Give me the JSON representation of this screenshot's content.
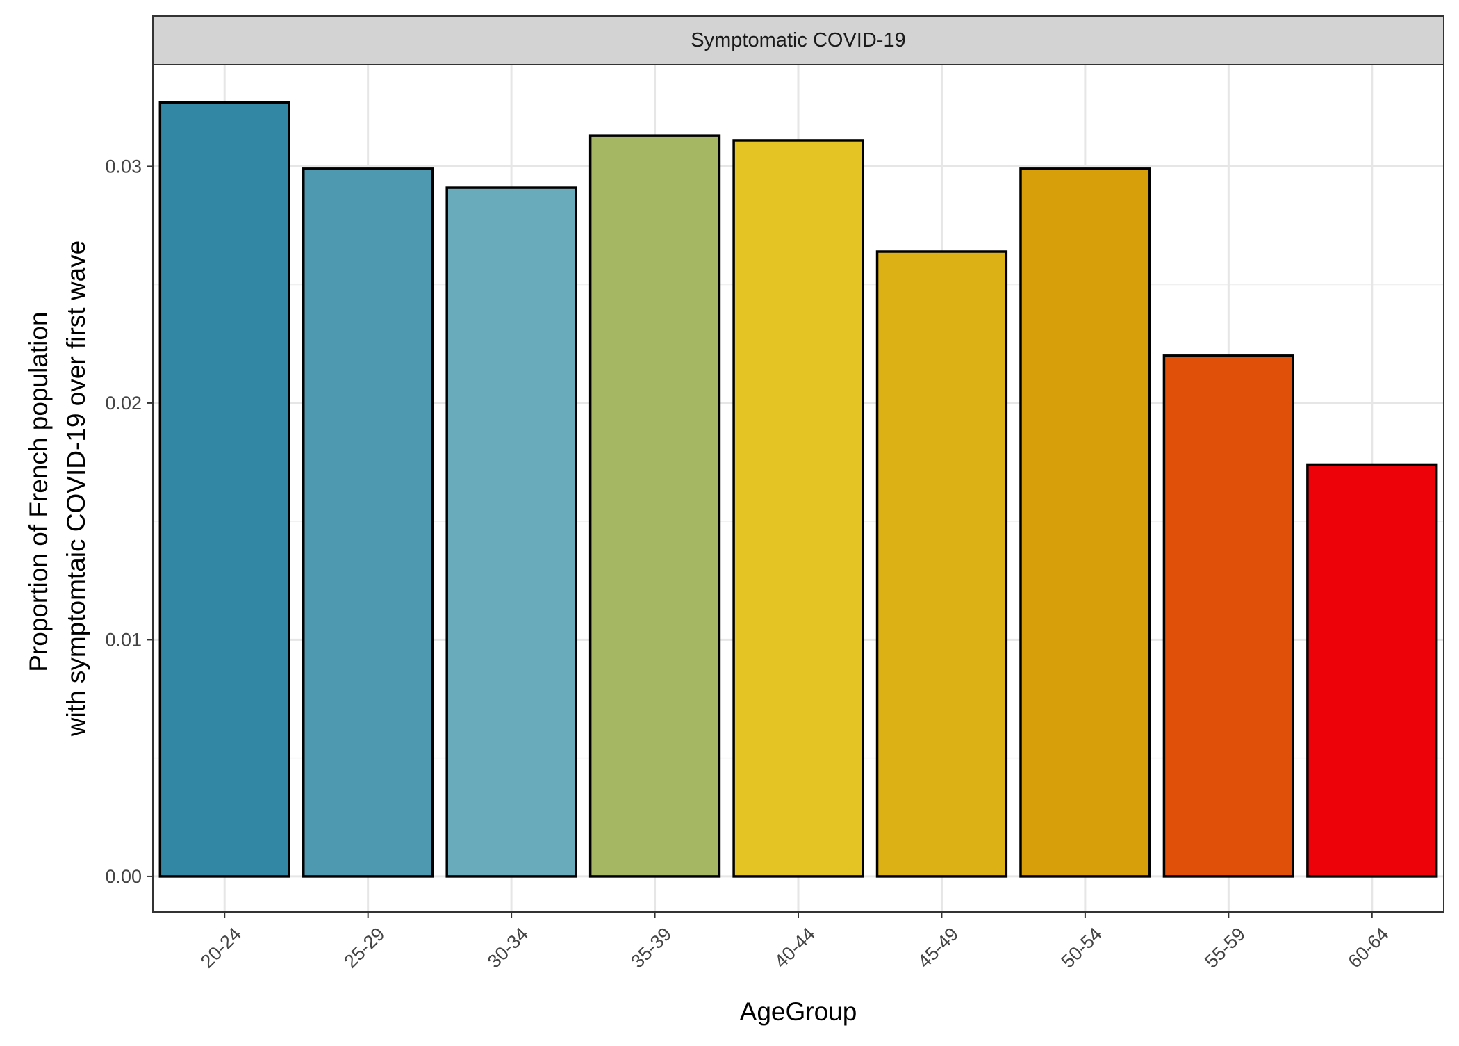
{
  "chart_data": {
    "type": "bar",
    "facet_title": "Symptomatic COVID-19",
    "categories": [
      "20-24",
      "25-29",
      "30-34",
      "35-39",
      "40-44",
      "45-49",
      "50-54",
      "55-59",
      "60-64"
    ],
    "values": [
      0.0327,
      0.0299,
      0.0291,
      0.0313,
      0.0311,
      0.0264,
      0.0299,
      0.022,
      0.0174
    ],
    "colors": [
      "#3288A4",
      "#4E98B0",
      "#69AABB",
      "#A5B763",
      "#E3C424",
      "#DCB115",
      "#D79F09",
      "#E05008",
      "#EC0208"
    ],
    "xlabel": "AgeGroup",
    "ylabel_lines": [
      "Proportion of French population",
      "with symptomtaic COVID-19 over first wave"
    ],
    "ylim": [
      -0.0015,
      0.0343
    ],
    "yticks": [
      0.0,
      0.01,
      0.02,
      0.03
    ],
    "ytick_labels": [
      "0.00",
      "0.01",
      "0.02",
      "0.03"
    ],
    "grid": true,
    "legend": "none"
  }
}
